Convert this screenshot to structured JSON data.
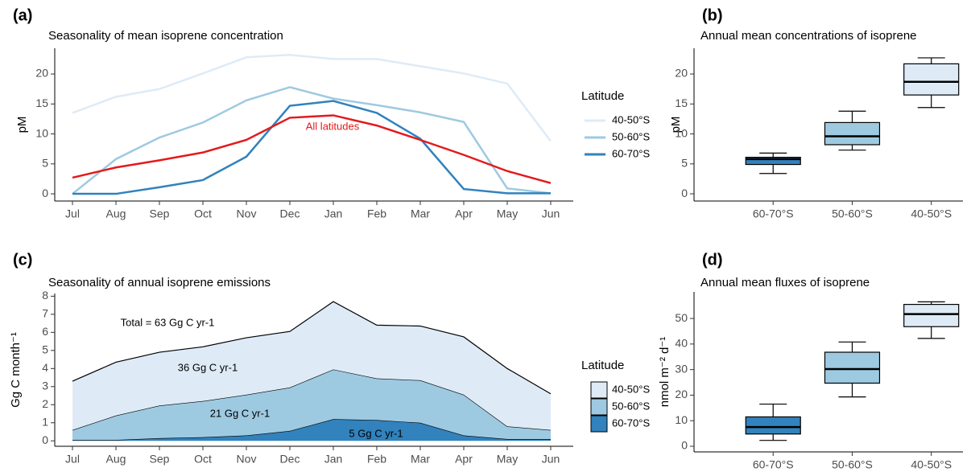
{
  "chart_data": [
    {
      "type": "line",
      "panel": "(a)",
      "title": "Seasonality of mean isoprene concentration",
      "ylabel": "pM",
      "categories": [
        "Jul",
        "Aug",
        "Sep",
        "Oct",
        "Nov",
        "Dec",
        "Jan",
        "Feb",
        "Mar",
        "Apr",
        "May",
        "Jun"
      ],
      "ylim": [
        -1.2,
        24.3
      ],
      "yticks": [
        0,
        5,
        10,
        15,
        20
      ],
      "legend_title": "Latitude",
      "series": [
        {
          "name": "40-50°S",
          "color": "#deebf7",
          "values": [
            13.5,
            16.2,
            17.5,
            20.1,
            22.8,
            23.2,
            22.5,
            22.5,
            21.3,
            20.1,
            18.4,
            8.8
          ]
        },
        {
          "name": "50-60°S",
          "color": "#9ecae1",
          "values": [
            0,
            5.8,
            9.4,
            11.9,
            15.6,
            17.8,
            15.9,
            14.8,
            13.6,
            12.0,
            0.9,
            0.1
          ]
        },
        {
          "name": "60-70°S",
          "color": "#3182bd",
          "values": [
            0,
            0,
            1.1,
            2.3,
            6.2,
            14.7,
            15.5,
            13.5,
            9.2,
            0.8,
            0.1,
            0.1
          ]
        }
      ],
      "overall": {
        "name": "All latitudes",
        "color": "#e31a1c",
        "values": [
          2.7,
          4.4,
          5.6,
          6.9,
          9.0,
          12.7,
          13.1,
          11.4,
          9.0,
          6.5,
          3.8,
          1.8
        ]
      }
    },
    {
      "type": "box",
      "panel": "(b)",
      "title": "Annual mean concentrations of isoprene",
      "ylabel": "pM",
      "categories": [
        "60-70°S",
        "50-60°S",
        "40-50°S"
      ],
      "colors": [
        "#3182bd",
        "#9ecae1",
        "#deebf7"
      ],
      "ylim": [
        -1.2,
        24.3
      ],
      "yticks": [
        0,
        5,
        10,
        15,
        20
      ],
      "whisker_low": [
        3.4,
        7.3,
        14.4
      ],
      "q1": [
        4.9,
        8.2,
        16.5
      ],
      "median": [
        5.8,
        9.6,
        18.7
      ],
      "q3": [
        6.1,
        11.9,
        21.7
      ],
      "whisker_high": [
        6.8,
        13.8,
        22.7
      ]
    },
    {
      "type": "area",
      "panel": "(c)",
      "title": "Seasonality of annual isoprene emissions",
      "ylabel": "Gg C month⁻¹",
      "categories": [
        "Jul",
        "Aug",
        "Sep",
        "Oct",
        "Nov",
        "Dec",
        "Jan",
        "Feb",
        "Mar",
        "Apr",
        "May",
        "Jun"
      ],
      "ylim": [
        -0.3,
        8.15
      ],
      "yticks": [
        0,
        1,
        2,
        3,
        4,
        5,
        6,
        7,
        8
      ],
      "legend_title": "Latitude",
      "series": [
        {
          "name": "60-70°S",
          "color": "#3182bd",
          "values": [
            0.05,
            0.05,
            0.15,
            0.2,
            0.3,
            0.55,
            1.2,
            1.15,
            1.0,
            0.3,
            0.1,
            0.1
          ]
        },
        {
          "name": "50-60°S",
          "color": "#9ecae1",
          "values": [
            0.55,
            1.35,
            1.8,
            2.0,
            2.25,
            2.4,
            2.75,
            2.3,
            2.35,
            2.25,
            0.7,
            0.5
          ]
        },
        {
          "name": "40-50°S",
          "color": "#deebf7",
          "values": [
            2.7,
            2.95,
            2.95,
            3.0,
            3.15,
            3.1,
            3.75,
            2.95,
            3.0,
            3.2,
            3.2,
            2.0
          ]
        }
      ],
      "annotations": [
        "Total = 63 Gg C yr-1",
        "36 Gg C yr-1",
        "21 Gg C yr-1",
        "5 Gg C yr-1"
      ]
    },
    {
      "type": "box",
      "panel": "(d)",
      "title": "Annual mean fluxes of isoprene",
      "ylabel": "nmol m⁻² d⁻¹",
      "categories": [
        "60-70°S",
        "50-60°S",
        "40-50°S"
      ],
      "colors": [
        "#3182bd",
        "#9ecae1",
        "#deebf7"
      ],
      "ylim": [
        -2.2,
        60.4
      ],
      "yticks": [
        0,
        10,
        20,
        30,
        40,
        50
      ],
      "whisker_low": [
        2.3,
        19.3,
        42.2
      ],
      "q1": [
        4.8,
        24.7,
        46.8
      ],
      "median": [
        7.5,
        30.2,
        51.7
      ],
      "q3": [
        11.5,
        36.8,
        55.5
      ],
      "whisker_high": [
        16.5,
        40.8,
        56.5
      ]
    }
  ]
}
